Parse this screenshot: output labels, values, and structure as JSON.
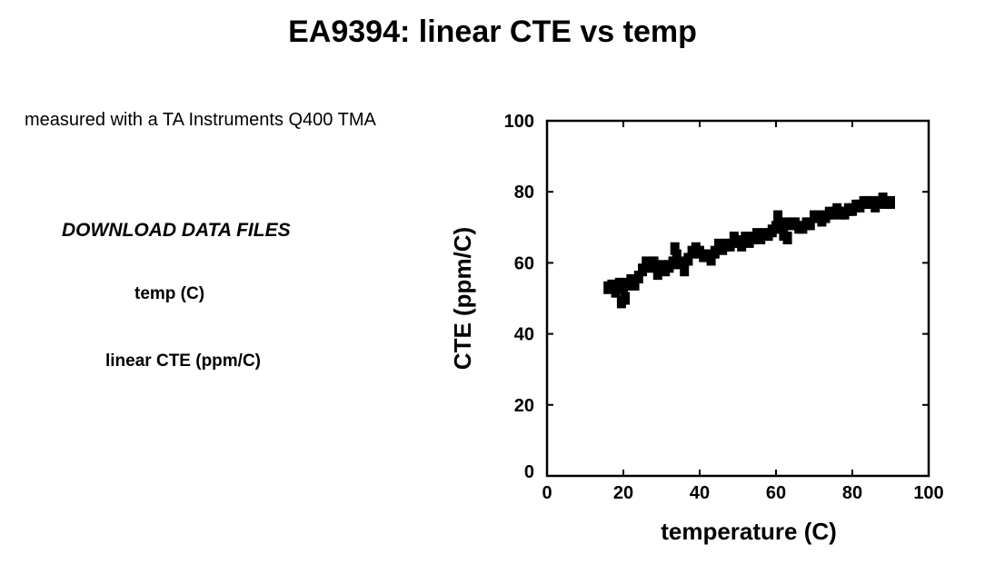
{
  "page": {
    "title": "EA9394: linear CTE vs temp",
    "subtitle": "measured with a TA Instruments Q400 TMA",
    "download_heading": "DOWNLOAD DATA FILES",
    "links": [
      {
        "label": "temp (C)"
      },
      {
        "label": "linear CTE (ppm/C)"
      }
    ]
  },
  "chart_data": {
    "type": "scatter",
    "xlabel": "temperature (C)",
    "ylabel": "CTE (ppm/C)",
    "xlim": [
      0,
      100
    ],
    "ylim": [
      0,
      100
    ],
    "xticks": [
      0,
      20,
      40,
      60,
      80,
      100
    ],
    "yticks": [
      0,
      20,
      40,
      60,
      80,
      100
    ],
    "grid": false,
    "marker_color": "#000000",
    "series": [
      {
        "x": [
          16,
          17,
          18,
          19,
          19.5,
          20,
          20.5,
          21,
          22,
          23,
          24,
          25,
          26,
          27,
          28,
          29,
          30,
          31,
          32,
          33,
          33.5,
          34,
          35,
          36,
          37,
          38,
          39,
          40,
          41,
          42,
          43,
          44,
          45,
          46,
          47,
          48,
          49,
          50,
          51,
          52,
          53,
          54,
          55,
          56,
          57,
          58,
          59,
          60,
          60.5,
          61,
          62,
          62.5,
          63,
          64,
          65,
          66,
          67,
          68,
          69,
          70,
          71,
          72,
          73,
          74,
          75,
          76,
          77,
          78,
          79,
          80,
          81,
          82,
          83,
          84,
          85,
          86,
          87,
          88,
          89,
          90
        ],
        "y": [
          53,
          53.5,
          52,
          54,
          49,
          53,
          50,
          54,
          55,
          54,
          56,
          58,
          60,
          59,
          60,
          57,
          59,
          58,
          59,
          60,
          64,
          62,
          60,
          58,
          61,
          63,
          64,
          63,
          62,
          62,
          61,
          63,
          65,
          64,
          65,
          65,
          67,
          66,
          65,
          67,
          66,
          67,
          68,
          67,
          68,
          68,
          69,
          70,
          73,
          70,
          68,
          71,
          67,
          71,
          71,
          70,
          70,
          71,
          71,
          73,
          73,
          72,
          73,
          74,
          74,
          75,
          74,
          74,
          75,
          75,
          76,
          76,
          77,
          77,
          77,
          76,
          77,
          78,
          77,
          77
        ]
      }
    ]
  }
}
